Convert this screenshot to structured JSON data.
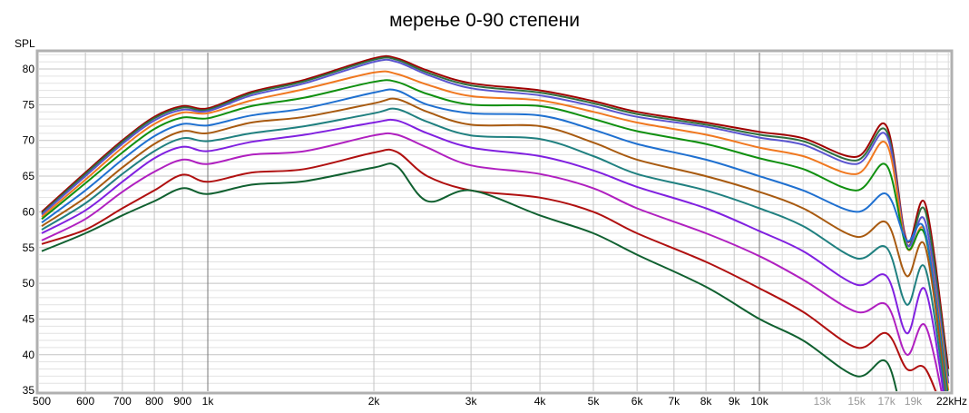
{
  "chart_data": {
    "type": "line",
    "title": "мерење 0-90 степени",
    "ylabel": "SPL",
    "xlabel": "",
    "xscale": "log",
    "xlim": [
      500,
      22000
    ],
    "ylim": [
      35,
      82.3
    ],
    "grid": true,
    "legend": "none",
    "x_ticks": [
      {
        "v": 500,
        "label": "500"
      },
      {
        "v": 600,
        "label": "600"
      },
      {
        "v": 700,
        "label": "700"
      },
      {
        "v": 800,
        "label": "800"
      },
      {
        "v": 900,
        "label": "900"
      },
      {
        "v": 1000,
        "label": "1k"
      },
      {
        "v": 2000,
        "label": "2k"
      },
      {
        "v": 3000,
        "label": "3k"
      },
      {
        "v": 4000,
        "label": "4k"
      },
      {
        "v": 5000,
        "label": "5k"
      },
      {
        "v": 6000,
        "label": "6k"
      },
      {
        "v": 7000,
        "label": "7k"
      },
      {
        "v": 8000,
        "label": "8k"
      },
      {
        "v": 9000,
        "label": "9k"
      },
      {
        "v": 10000,
        "label": "10k"
      },
      {
        "v": 13000,
        "label": "13k",
        "dim": true
      },
      {
        "v": 15000,
        "label": "15k",
        "dim": true
      },
      {
        "v": 17000,
        "label": "17k",
        "dim": true
      },
      {
        "v": 19000,
        "label": "19k",
        "dim": true
      },
      {
        "v": 22000,
        "label": "22kHz"
      }
    ],
    "y_ticks": [
      35,
      40,
      45,
      50,
      55,
      60,
      65,
      70,
      75,
      80
    ],
    "x": [
      500,
      600,
      700,
      800,
      900,
      1000,
      1200,
      1500,
      2000,
      2200,
      2500,
      3000,
      4000,
      5000,
      6000,
      8000,
      10000,
      12000,
      15000,
      17000,
      18500,
      20000,
      22000
    ],
    "series": [
      {
        "color": "#a00000",
        "values": [
          60,
          65.5,
          70,
          73.3,
          74.8,
          74.5,
          76.8,
          78.5,
          81.5,
          81.5,
          79.8,
          78,
          77,
          75.5,
          74,
          72.5,
          71.2,
          70.3,
          67.7,
          72,
          56,
          61,
          38
        ]
      },
      {
        "color": "#2f6f3f",
        "values": [
          59.8,
          65.3,
          69.8,
          73.1,
          74.6,
          74.3,
          76.6,
          78.3,
          81.3,
          81.3,
          79.5,
          77.7,
          76.7,
          75.2,
          73.7,
          72.2,
          70.8,
          69.9,
          67.2,
          71.3,
          55.5,
          60,
          37
        ]
      },
      {
        "color": "#5a55d0",
        "values": [
          59.6,
          65,
          69.5,
          72.8,
          74.3,
          74.1,
          76.3,
          78,
          81,
          81,
          79.2,
          77.3,
          76.3,
          74.8,
          73.3,
          71.9,
          70.4,
          69.4,
          66.7,
          70.7,
          55.5,
          58.5,
          36
        ]
      },
      {
        "color": "#f07820",
        "values": [
          59.3,
          64.5,
          69,
          72.3,
          73.9,
          73.8,
          75.6,
          77.2,
          79.5,
          79.3,
          77.8,
          76.2,
          75.6,
          74,
          72.5,
          70.8,
          69,
          67.8,
          65.3,
          69.5,
          55,
          57,
          35
        ]
      },
      {
        "color": "#109010",
        "values": [
          59,
          64,
          68.3,
          71.6,
          73.2,
          73.1,
          74.8,
          76,
          78.2,
          78.2,
          76.5,
          75,
          74.8,
          73,
          71.3,
          69.5,
          67.5,
          66,
          63,
          66.5,
          55,
          56.5,
          34
        ]
      },
      {
        "color": "#1f70d0",
        "values": [
          58.5,
          63,
          67.3,
          70.6,
          72.3,
          72.1,
          73.5,
          74.5,
          76.7,
          77,
          75,
          73.8,
          73.5,
          71.5,
          69.5,
          67.3,
          65,
          63,
          60,
          62.5,
          56,
          57,
          33
        ]
      },
      {
        "color": "#a85a10",
        "values": [
          58,
          62,
          66.2,
          69.5,
          71.3,
          71,
          72.5,
          73.3,
          75.2,
          75.8,
          74,
          72.2,
          72,
          69.7,
          67.3,
          65,
          62.8,
          60.5,
          56.5,
          58.5,
          51,
          55,
          32
        ]
      },
      {
        "color": "#208080",
        "values": [
          57.5,
          61.2,
          65.3,
          68.5,
          70.3,
          69.9,
          71,
          72,
          73.8,
          74.4,
          72.6,
          70.7,
          70.2,
          67.8,
          65.3,
          63,
          60.5,
          58,
          53.5,
          55,
          47,
          52,
          31
        ]
      },
      {
        "color": "#8020e0",
        "values": [
          57,
          60.2,
          64.2,
          67.5,
          69.1,
          68.5,
          69.8,
          70.8,
          72.5,
          72.8,
          71,
          69,
          67.8,
          65.8,
          63.5,
          60.5,
          57.3,
          54.5,
          49.8,
          51,
          43,
          49,
          30
        ]
      },
      {
        "color": "#b020c0",
        "values": [
          56,
          59,
          62.8,
          65.6,
          67.3,
          66.7,
          68,
          68.5,
          70.7,
          70.8,
          69,
          66.5,
          65.3,
          63.3,
          60.5,
          57,
          53.8,
          50.5,
          46,
          47,
          40,
          44,
          30
        ]
      },
      {
        "color": "#b01010",
        "values": [
          55.5,
          57.5,
          60.5,
          63,
          65.2,
          64.2,
          65.5,
          66,
          68.3,
          68.4,
          65,
          63,
          62,
          60,
          57,
          53,
          49.3,
          46,
          41,
          43,
          38,
          38,
          30
        ]
      },
      {
        "color": "#106030",
        "values": [
          54.5,
          57,
          59.5,
          61.5,
          63.3,
          62.5,
          63.8,
          64.3,
          66.2,
          66.4,
          61.5,
          63,
          59.5,
          57,
          54,
          49.5,
          45,
          42,
          37,
          39,
          30,
          33,
          30
        ]
      }
    ]
  }
}
